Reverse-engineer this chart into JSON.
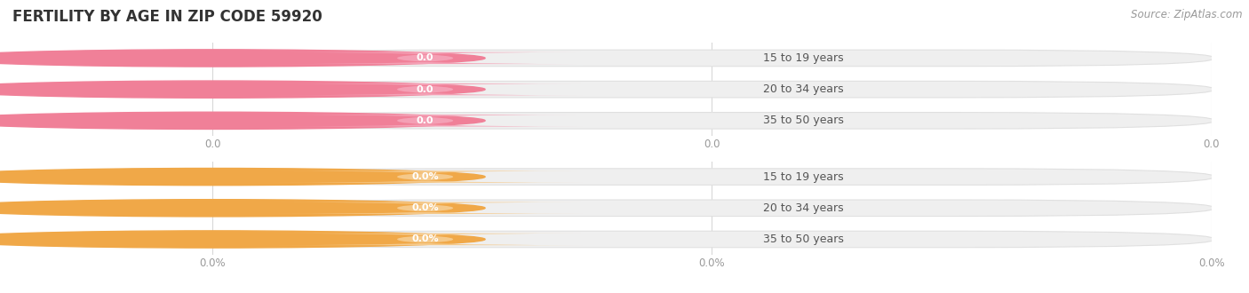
{
  "title": "FERTILITY BY AGE IN ZIP CODE 59920",
  "source_text": "Source: ZipAtlas.com",
  "categories": [
    "15 to 19 years",
    "20 to 34 years",
    "35 to 50 years"
  ],
  "group1_values": [
    0.0,
    0.0,
    0.0
  ],
  "group2_values": [
    0.0,
    0.0,
    0.0
  ],
  "group1_bar_color": "#f4a0b5",
  "group1_circle_color": "#f08098",
  "group1_badge_color": "#f4a0b5",
  "group2_bar_color": "#f5c98a",
  "group2_circle_color": "#f0a848",
  "group2_badge_color": "#f5c98a",
  "bar_bg_color": "#efefef",
  "bar_bg_stroke": "#e0e0e0",
  "grid_color": "#d8d8d8",
  "title_color": "#333333",
  "label_color": "#555555",
  "tick_label_color": "#999999",
  "source_color": "#999999",
  "xtick_labels_top": [
    "0.0",
    "0.0",
    "0.0"
  ],
  "xtick_labels_bottom": [
    "0.0%",
    "0.0%",
    "0.0%"
  ],
  "title_fontsize": 12,
  "label_fontsize": 9,
  "tick_fontsize": 8.5,
  "source_fontsize": 8.5,
  "value_fontsize": 8
}
